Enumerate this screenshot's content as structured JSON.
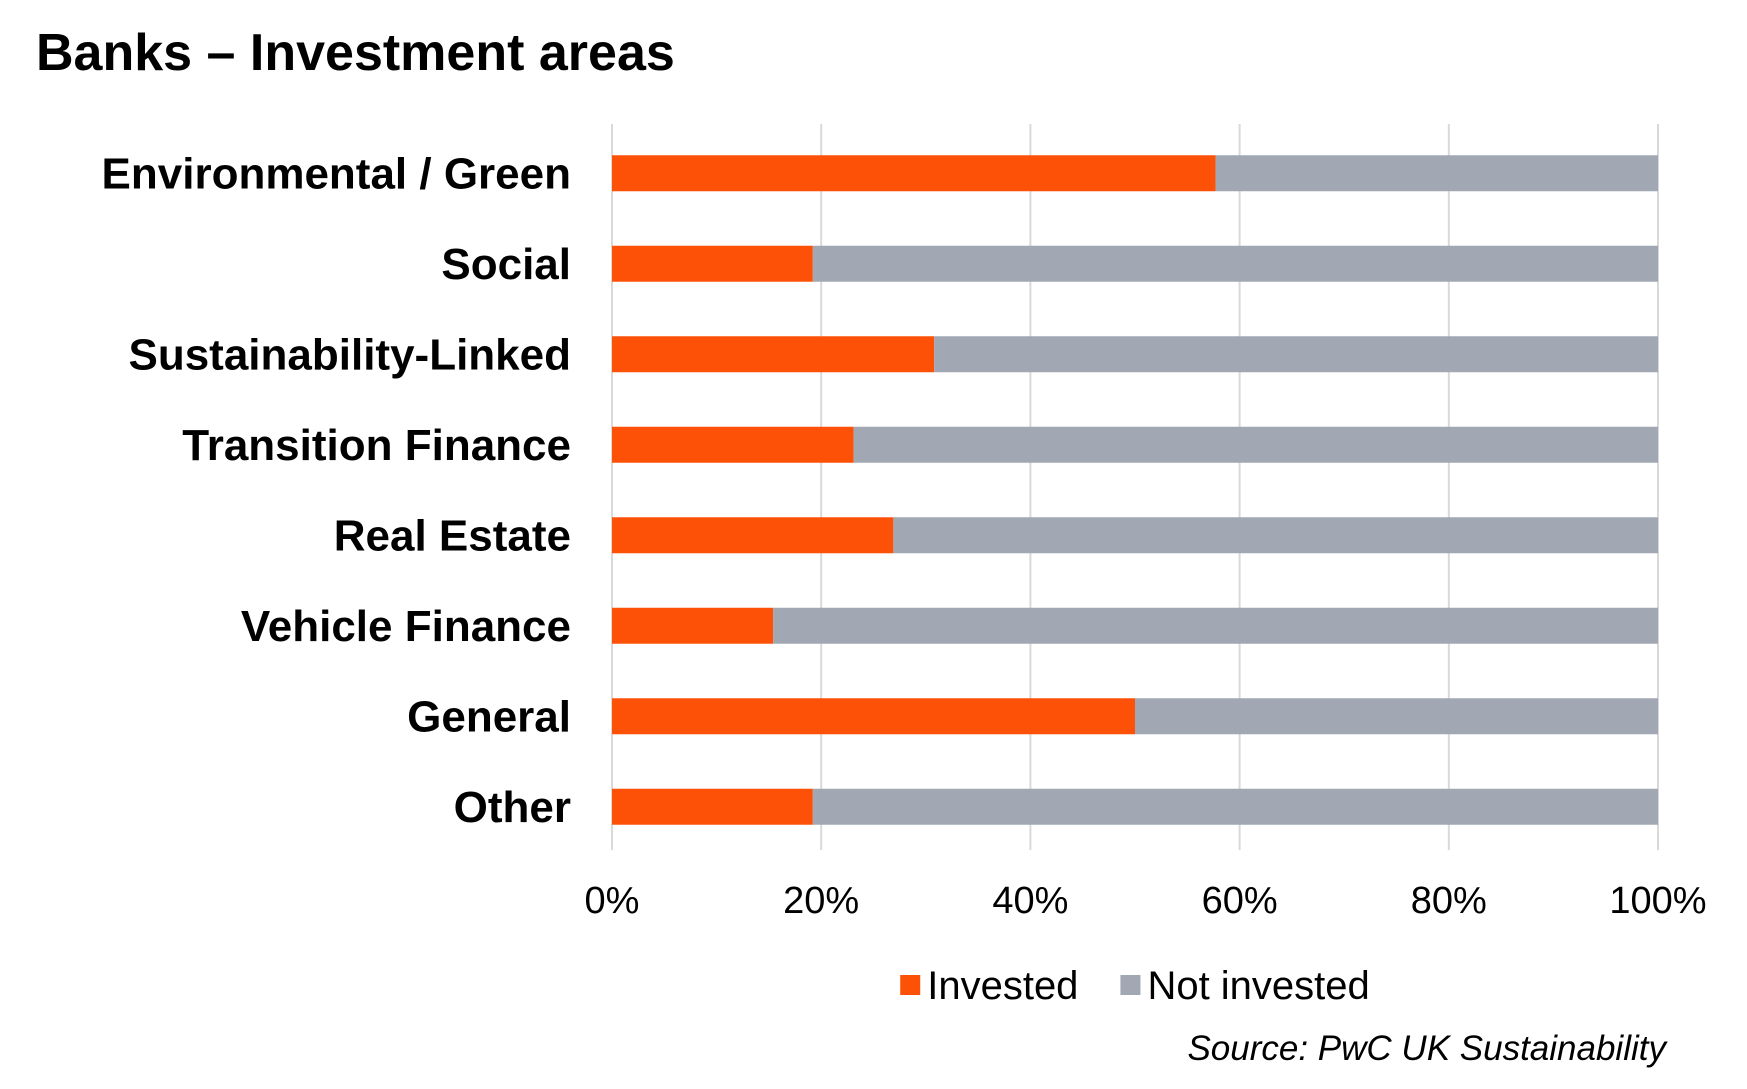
{
  "chart_data": {
    "type": "bar",
    "orientation": "horizontal",
    "stacked": true,
    "percent_stacked": true,
    "title": "Banks –  Investment areas",
    "categories": [
      "Environmental / Green",
      "Social",
      "Sustainability-Linked",
      "Transition Finance",
      "Real Estate",
      "Vehicle Finance",
      "General",
      "Other"
    ],
    "series": [
      {
        "name": "Invested",
        "color": "#fd5108",
        "values": [
          57.7,
          19.2,
          30.8,
          23.1,
          26.9,
          15.4,
          50.0,
          19.2
        ]
      },
      {
        "name": "Not invested",
        "color": "#a1a8b3",
        "values": [
          42.3,
          80.8,
          69.2,
          76.9,
          73.1,
          84.6,
          50.0,
          80.8
        ]
      }
    ],
    "x_ticks": [
      "0%",
      "20%",
      "40%",
      "60%",
      "80%",
      "100%"
    ],
    "xlim": [
      0,
      100
    ],
    "grid": "vertical",
    "legend_position": "bottom"
  },
  "source": "Source: PwC UK Sustainability"
}
